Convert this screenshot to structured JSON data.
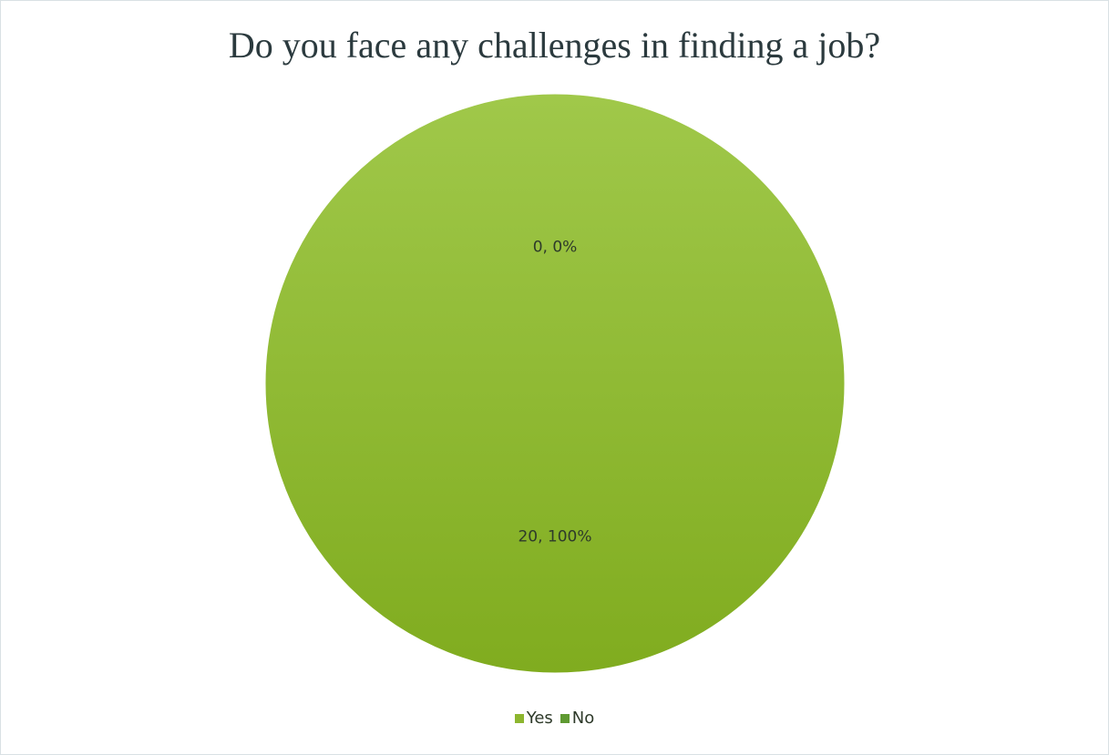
{
  "chart_data": {
    "type": "pie",
    "title": "Do you face any challenges in finding a job?",
    "categories": [
      "Yes",
      "No"
    ],
    "values": [
      20,
      0
    ],
    "percentages": [
      "100%",
      "0%"
    ],
    "data_labels": [
      "20, 100%",
      "0, 0%"
    ],
    "colors": [
      "#8db62f",
      "#5f9a32"
    ],
    "legend_position": "bottom"
  }
}
